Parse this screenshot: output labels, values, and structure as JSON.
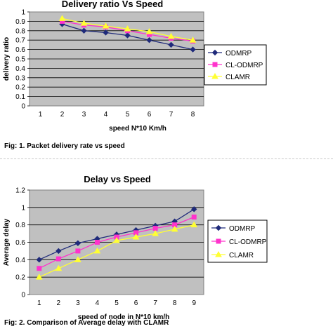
{
  "charts": [
    {
      "type": "line",
      "title": "Delivery ratio Vs Speed",
      "xlabel": "speed N*10 Km/h",
      "ylabel": "delivery ratio",
      "categories": [
        "1",
        "2",
        "3",
        "4",
        "5",
        "6",
        "7",
        "8"
      ],
      "yticks": [
        "0",
        "0.1",
        "0.2",
        "0.3",
        "0.4",
        "0.5",
        "0.6",
        "0.7",
        "0.8",
        "0.9",
        "1"
      ],
      "ylim": [
        0,
        1
      ],
      "grid": true,
      "legend_position": "right",
      "series": [
        {
          "name": "ODMRP",
          "color": "#1f2a7a",
          "marker": "diamond",
          "x": [
            2,
            3,
            4,
            5,
            6,
            7,
            8
          ],
          "values": [
            0.87,
            0.8,
            0.78,
            0.75,
            0.7,
            0.65,
            0.6
          ]
        },
        {
          "name": "CL-ODMRP",
          "color": "#ff33cc",
          "marker": "square",
          "x": [
            2,
            3,
            4,
            5,
            6,
            7,
            8
          ],
          "values": [
            0.9,
            0.86,
            0.84,
            0.8,
            0.76,
            0.72,
            0.69
          ]
        },
        {
          "name": "CLAMR",
          "color": "#ffff33",
          "marker": "triangle",
          "x": [
            2,
            3,
            4,
            5,
            6,
            7,
            8
          ],
          "values": [
            0.93,
            0.88,
            0.85,
            0.82,
            0.79,
            0.74,
            0.7
          ]
        }
      ]
    },
    {
      "type": "line",
      "title": "Delay vs Speed",
      "xlabel": "speed of node in N*10 km/h",
      "ylabel": "Average delay",
      "categories": [
        "1",
        "2",
        "3",
        "4",
        "5",
        "6",
        "7",
        "8",
        "9"
      ],
      "yticks": [
        "0",
        "0.2",
        "0.4",
        "0.6",
        "0.8",
        "1",
        "1.2"
      ],
      "ylim": [
        0,
        1.2
      ],
      "grid": true,
      "legend_position": "right",
      "series": [
        {
          "name": "ODMRP",
          "color": "#1f2a7a",
          "marker": "diamond",
          "x": [
            1,
            2,
            3,
            4,
            5,
            6,
            7,
            8,
            9
          ],
          "values": [
            0.4,
            0.5,
            0.59,
            0.64,
            0.69,
            0.74,
            0.79,
            0.84,
            0.98
          ]
        },
        {
          "name": "CL-ODMRP",
          "color": "#ff33cc",
          "marker": "square",
          "x": [
            1,
            2,
            3,
            4,
            5,
            6,
            7,
            8,
            9
          ],
          "values": [
            0.3,
            0.41,
            0.5,
            0.6,
            0.66,
            0.71,
            0.76,
            0.8,
            0.89
          ]
        },
        {
          "name": "CLAMR",
          "color": "#ffff33",
          "marker": "triangle",
          "x": [
            1,
            2,
            3,
            4,
            5,
            6,
            7,
            8,
            9
          ],
          "values": [
            0.2,
            0.3,
            0.4,
            0.5,
            0.62,
            0.66,
            0.7,
            0.75,
            0.8
          ]
        }
      ]
    }
  ],
  "captions": {
    "fig1": "Fig: 1. Packet delivery rate vs speed",
    "fig2": "Fig: 2. Comparison of Average delay with CLAMR"
  }
}
